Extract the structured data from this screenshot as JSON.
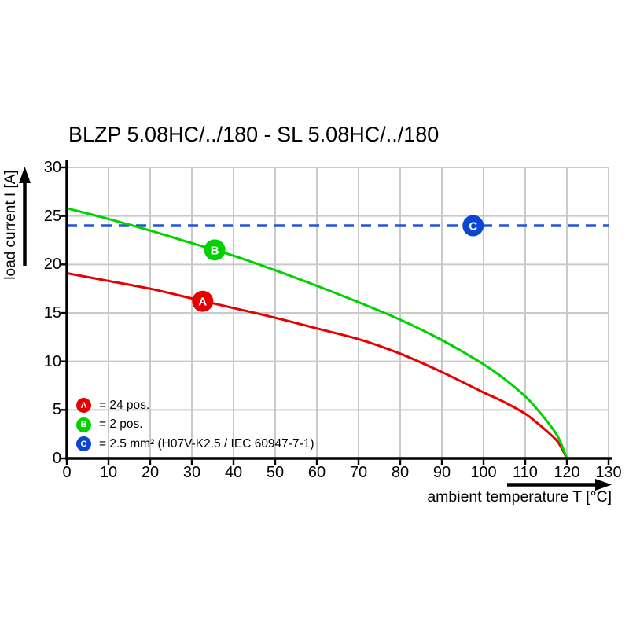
{
  "chart_data": {
    "type": "line",
    "title": "BLZP 5.08HC/../180 - SL 5.08HC/../180",
    "xlabel": "ambient temperature T [°C]",
    "ylabel": "load current I [A]",
    "xlim": [
      0,
      130
    ],
    "ylim": [
      0,
      30
    ],
    "xticks": [
      0,
      10,
      20,
      30,
      40,
      50,
      60,
      70,
      80,
      90,
      100,
      110,
      120,
      130
    ],
    "yticks_desc": [
      30,
      25,
      20,
      15,
      10,
      5,
      0
    ],
    "grid": true,
    "grid_color": "#c9c9c9",
    "axis_color": "#000000",
    "background": "#ffffff",
    "legend_position": "bottom-left-inside",
    "series": [
      {
        "id": "A",
        "kind": "curve",
        "color": "#e60000",
        "legend": "= 24 pos.",
        "marker": {
          "letter": "A",
          "x": 32.6,
          "y": 16.2,
          "fill": "#e60000"
        },
        "points": [
          [
            0,
            19.1
          ],
          [
            10,
            18.3
          ],
          [
            20,
            17.5
          ],
          [
            30,
            16.5
          ],
          [
            40,
            15.5
          ],
          [
            50,
            14.5
          ],
          [
            60,
            13.4
          ],
          [
            70,
            12.3
          ],
          [
            80,
            10.8
          ],
          [
            90,
            8.9
          ],
          [
            100,
            6.8
          ],
          [
            105,
            5.8
          ],
          [
            110,
            4.6
          ],
          [
            113,
            3.6
          ],
          [
            116,
            2.5
          ],
          [
            118,
            1.6
          ],
          [
            120,
            0
          ]
        ]
      },
      {
        "id": "B",
        "kind": "curve",
        "color": "#00d200",
        "legend": "= 2 pos.",
        "marker": {
          "letter": "B",
          "x": 35.5,
          "y": 21.5,
          "fill": "#00d200"
        },
        "points": [
          [
            0,
            25.8
          ],
          [
            10,
            24.7
          ],
          [
            20,
            23.5
          ],
          [
            30,
            22.2
          ],
          [
            40,
            20.9
          ],
          [
            50,
            19.4
          ],
          [
            60,
            17.8
          ],
          [
            70,
            16.1
          ],
          [
            80,
            14.3
          ],
          [
            90,
            12.2
          ],
          [
            100,
            9.7
          ],
          [
            105,
            8.2
          ],
          [
            110,
            6.4
          ],
          [
            113,
            5.0
          ],
          [
            116,
            3.4
          ],
          [
            118,
            2.1
          ],
          [
            120,
            0
          ]
        ]
      },
      {
        "id": "C",
        "kind": "dashed-horizontal",
        "color": "#2353e0",
        "value": 24,
        "legend": "= 2.5 mm² (H07V-K2.5 / IEC 60947-7-1)",
        "marker": {
          "letter": "C",
          "x": 97.5,
          "y": 24,
          "fill": "#0a46d0"
        },
        "points": [
          [
            0,
            24
          ],
          [
            130,
            24
          ]
        ]
      }
    ]
  }
}
